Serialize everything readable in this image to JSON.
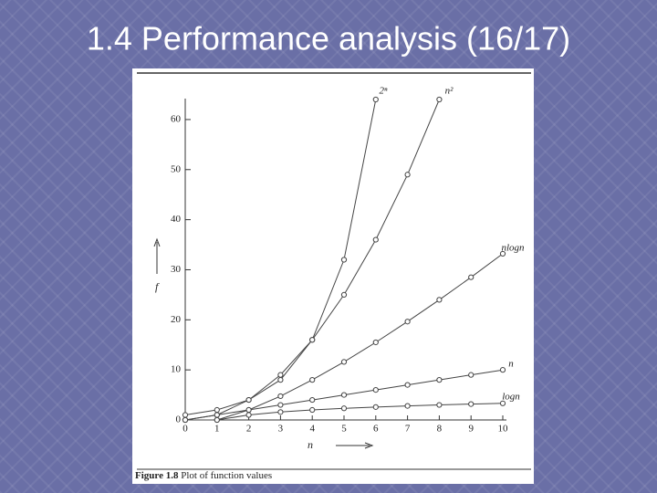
{
  "slide_title": "1.4 Performance analysis (16/17)",
  "chart_data": {
    "type": "line",
    "x_label": "n",
    "y_label": "f",
    "caption_label": "Figure 1.8",
    "caption_text": "Plot of function values",
    "x": [
      0,
      1,
      2,
      3,
      4,
      5,
      6,
      7,
      8,
      9,
      10
    ],
    "xlim": [
      0,
      10
    ],
    "ylim": [
      0,
      64
    ],
    "xticks": [
      0,
      1,
      2,
      3,
      4,
      5,
      6,
      7,
      8,
      9,
      10
    ],
    "yticks": [
      0,
      10,
      20,
      30,
      40,
      50,
      60
    ],
    "series": [
      {
        "name": "2ⁿ",
        "color": "#444444",
        "values": [
          1,
          2,
          4,
          8,
          16,
          32,
          64,
          null,
          null,
          null,
          null
        ]
      },
      {
        "name": "n²",
        "color": "#444444",
        "values": [
          0,
          1,
          4,
          9,
          16,
          25,
          36,
          49,
          64,
          null,
          null
        ]
      },
      {
        "name": "nlogn",
        "color": "#444444",
        "values": [
          0,
          0,
          2,
          4.75,
          8,
          11.6,
          15.5,
          19.65,
          24,
          28.5,
          33.2
        ]
      },
      {
        "name": "n",
        "color": "#444444",
        "values": [
          0,
          1,
          2,
          3,
          4,
          5,
          6,
          7,
          8,
          9,
          10
        ]
      },
      {
        "name": "logn",
        "color": "#444444",
        "values": [
          null,
          0,
          1,
          1.58,
          2,
          2.32,
          2.58,
          2.81,
          3,
          3.17,
          3.32
        ]
      }
    ]
  }
}
